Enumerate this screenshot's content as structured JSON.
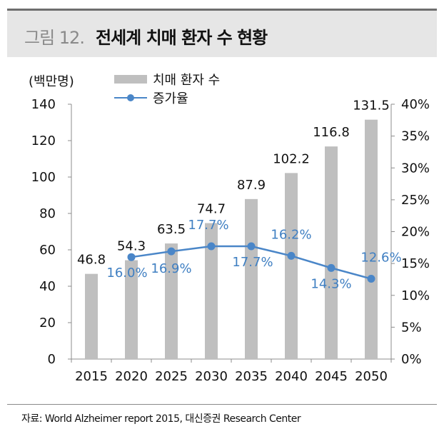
{
  "header": {
    "prefix": "그림 12.",
    "title": "전세계 치매 환자 수 현황"
  },
  "unit_label": "(백만명)",
  "legend": {
    "bar_label": "치매 환자 수",
    "line_label": "증가율"
  },
  "source": "자료: World Alzheimer report 2015, 대신증권 Research Center",
  "colors": {
    "bar": "#bfbfbf",
    "line": "#4a86c8",
    "line_label": "#3f7fc2",
    "axis": "#8c8c8c"
  },
  "chart_data": {
    "type": "bar",
    "categories": [
      "2015",
      "2020",
      "2025",
      "2030",
      "2035",
      "2040",
      "2045",
      "2050"
    ],
    "series": [
      {
        "name": "치매 환자 수",
        "type": "bar",
        "axis": "left",
        "values": [
          46.8,
          54.3,
          63.5,
          74.7,
          87.9,
          102.2,
          116.8,
          131.5
        ],
        "labels": [
          "46.8",
          "54.3",
          "63.5",
          "74.7",
          "87.9",
          "102.2",
          "116.8",
          "131.5"
        ]
      },
      {
        "name": "증가율",
        "type": "line",
        "axis": "right",
        "values": [
          null,
          16.0,
          16.9,
          17.7,
          17.7,
          16.2,
          14.3,
          12.6
        ],
        "labels": [
          "",
          "16.0%",
          "16.9%",
          "17.7%",
          "17.7%",
          "16.2%",
          "14.3%",
          "12.6%"
        ]
      }
    ],
    "y_left": {
      "min": 0,
      "max": 140,
      "ticks": [
        "0",
        "20",
        "40",
        "60",
        "80",
        "100",
        "120",
        "140"
      ]
    },
    "y_right": {
      "min": 0,
      "max": 40,
      "ticks": [
        "0%",
        "5%",
        "10%",
        "15%",
        "20%",
        "25%",
        "30%",
        "35%",
        "40%"
      ]
    },
    "grid": false,
    "legend_position": "top-left"
  }
}
